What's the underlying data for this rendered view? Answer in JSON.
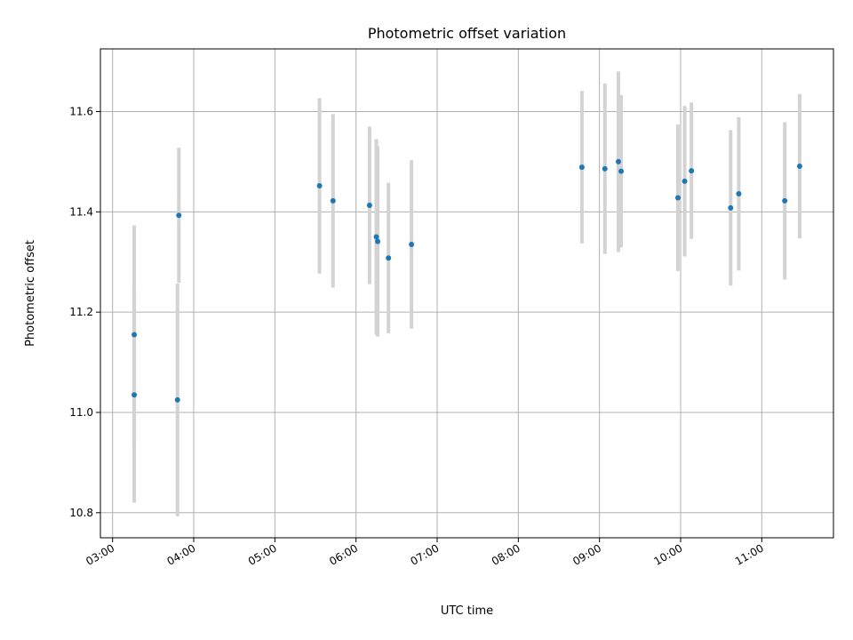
{
  "chart_data": {
    "type": "scatter",
    "title": "Photometric offset variation",
    "xlabel": "UTC time",
    "ylabel": "Photometric offset",
    "x_ticks": [
      "03:00",
      "04:00",
      "05:00",
      "06:00",
      "07:00",
      "08:00",
      "09:00",
      "10:00",
      "11:00"
    ],
    "y_ticks": [
      "10.8",
      "11.0",
      "11.2",
      "11.4",
      "11.6"
    ],
    "xlim": [
      "02:51",
      "11:53"
    ],
    "ylim": [
      10.75,
      11.725
    ],
    "grid": true,
    "colors": {
      "marker": "#1f77b4",
      "errorbar": "#d3d3d3",
      "grid": "#b0b0b0"
    },
    "points": [
      {
        "x": "03:16",
        "y": 11.155,
        "yerr": 0.218
      },
      {
        "x": "03:16",
        "y": 11.035,
        "yerr": 0.215
      },
      {
        "x": "03:48",
        "y": 11.025,
        "yerr": 0.232
      },
      {
        "x": "03:49",
        "y": 11.393,
        "yerr": 0.135
      },
      {
        "x": "05:33",
        "y": 11.452,
        "yerr": 0.175
      },
      {
        "x": "05:43",
        "y": 11.422,
        "yerr": 0.173
      },
      {
        "x": "06:10",
        "y": 11.413,
        "yerr": 0.157
      },
      {
        "x": "06:15",
        "y": 11.35,
        "yerr": 0.195
      },
      {
        "x": "06:16",
        "y": 11.341,
        "yerr": 0.19
      },
      {
        "x": "06:24",
        "y": 11.308,
        "yerr": 0.15
      },
      {
        "x": "06:41",
        "y": 11.335,
        "yerr": 0.168
      },
      {
        "x": "08:47",
        "y": 11.489,
        "yerr": 0.152
      },
      {
        "x": "09:04",
        "y": 11.486,
        "yerr": 0.17
      },
      {
        "x": "09:14",
        "y": 11.5,
        "yerr": 0.18
      },
      {
        "x": "09:16",
        "y": 11.481,
        "yerr": 0.152
      },
      {
        "x": "09:58",
        "y": 11.428,
        "yerr": 0.146
      },
      {
        "x": "10:03",
        "y": 11.461,
        "yerr": 0.15
      },
      {
        "x": "10:08",
        "y": 11.482,
        "yerr": 0.136
      },
      {
        "x": "10:37",
        "y": 11.408,
        "yerr": 0.155
      },
      {
        "x": "10:43",
        "y": 11.436,
        "yerr": 0.153
      },
      {
        "x": "11:17",
        "y": 11.422,
        "yerr": 0.157
      },
      {
        "x": "11:28",
        "y": 11.491,
        "yerr": 0.144
      }
    ]
  }
}
